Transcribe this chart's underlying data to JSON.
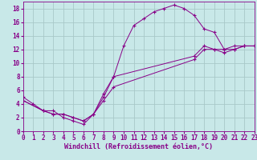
{
  "background_color": "#c8e8e8",
  "grid_color": "#a8c8c8",
  "line_color": "#880088",
  "marker_color": "#880088",
  "xlabel": "Windchill (Refroidissement éolien,°C)",
  "xlabel_fontsize": 6.0,
  "tick_fontsize": 5.5,
  "xmin": 0,
  "xmax": 23,
  "ymin": 0,
  "ymax": 19,
  "xtick_step": 1,
  "ytick_step": 2,
  "series": [
    {
      "x": [
        0,
        1,
        2,
        3,
        4,
        5,
        6,
        7,
        8,
        9,
        10,
        11,
        12,
        13,
        14,
        15,
        16,
        17,
        18,
        19,
        20,
        21,
        22,
        23
      ],
      "y": [
        5,
        4,
        3,
        3,
        2,
        1.5,
        1,
        2.5,
        5.5,
        8,
        12.5,
        15.5,
        16.5,
        17.5,
        18,
        18.5,
        18,
        17,
        15,
        14.5,
        12,
        12,
        12.5,
        12.5
      ]
    },
    {
      "x": [
        0,
        2,
        3,
        4,
        5,
        6,
        7,
        8,
        9,
        17,
        18,
        19,
        20,
        21,
        22,
        23
      ],
      "y": [
        4.5,
        3,
        2.5,
        2.5,
        2,
        1.5,
        2.5,
        5,
        8,
        11,
        12.5,
        12,
        12,
        12.5,
        12.5,
        12.5
      ]
    },
    {
      "x": [
        0,
        2,
        3,
        4,
        5,
        6,
        7,
        8,
        9,
        17,
        18,
        19,
        20,
        21,
        22,
        23
      ],
      "y": [
        4.5,
        3,
        2.5,
        2.5,
        2,
        1.5,
        2.5,
        4.5,
        6.5,
        10.5,
        12,
        12,
        11.5,
        12,
        12.5,
        12.5
      ]
    }
  ]
}
